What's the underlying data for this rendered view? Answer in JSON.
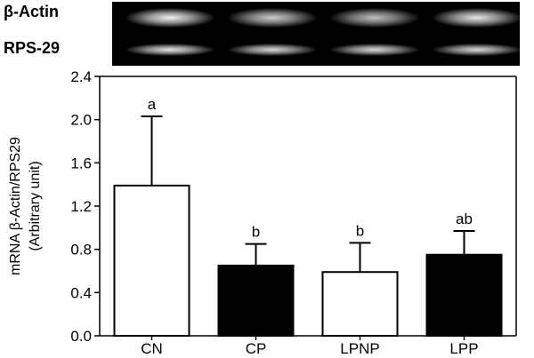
{
  "gel": {
    "rows": [
      {
        "label": "β-Actin",
        "intensity": [
          0.95,
          0.8,
          0.75,
          0.9
        ]
      },
      {
        "label": "RPS-29",
        "intensity": [
          0.9,
          0.85,
          0.85,
          0.85
        ]
      }
    ]
  },
  "chart_data": {
    "type": "bar",
    "categories": [
      "CN",
      "CP",
      "LPNP",
      "LPP"
    ],
    "values": [
      1.39,
      0.65,
      0.59,
      0.75
    ],
    "errors": [
      0.64,
      0.2,
      0.27,
      0.22
    ],
    "significance": [
      "a",
      "b",
      "b",
      "ab"
    ],
    "bar_fill": [
      "#ffffff",
      "#000000",
      "#ffffff",
      "#000000"
    ],
    "ylabel": "mRNA β-Actin/RPS29",
    "ylabel_sub": "(Arbitrary unit)",
    "ylim": [
      0.0,
      2.4
    ],
    "yticks": [
      "0.0",
      "0.4",
      "0.8",
      "1.2",
      "1.6",
      "2.0",
      "2.4"
    ],
    "grid": false
  }
}
